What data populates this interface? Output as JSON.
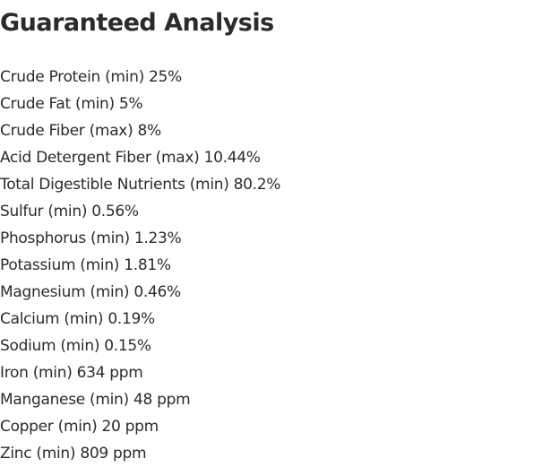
{
  "header": {
    "title": "Guaranteed Analysis"
  },
  "items": [
    "Crude Protein (min) 25%",
    "Crude Fat (min) 5%",
    "Crude Fiber (max) 8%",
    "Acid Detergent Fiber (max) 10.44%",
    "Total Digestible Nutrients (min) 80.2%",
    "Sulfur (min) 0.56%",
    "Phosphorus (min) 1.23%",
    "Potassium (min) 1.81%",
    "Magnesium (min) 0.46%",
    "Calcium (min) 0.19%",
    "Sodium (min) 0.15%",
    "Iron (min) 634 ppm",
    "Manganese (min) 48 ppm",
    "Copper (min) 20 ppm",
    "Zinc (min) 809 ppm"
  ]
}
